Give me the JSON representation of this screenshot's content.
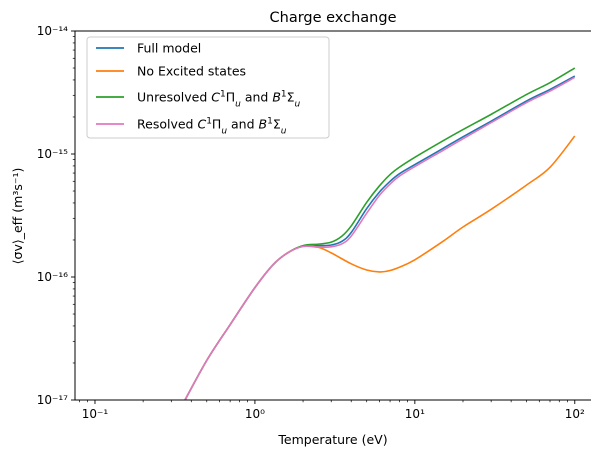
{
  "chart_data": {
    "type": "line",
    "title": "Charge exchange",
    "xlabel": "Temperature (eV)",
    "ylabel": "⟨σv⟩_eff (m³s⁻¹)",
    "xscale": "log",
    "yscale": "log",
    "xlim": [
      0.075,
      130
    ],
    "ylim": [
      1e-17,
      1e-14
    ],
    "x_tick_labels": [
      "10⁻¹",
      "10⁰",
      "10¹",
      "10²"
    ],
    "y_tick_labels": [
      "10⁻¹⁷",
      "10⁻¹⁶",
      "10⁻¹⁵",
      "10⁻¹⁴"
    ],
    "grid": false,
    "legend_position": "upper-left",
    "series": [
      {
        "name": "Full model",
        "color": "#1f77b4",
        "x": [
          0.35,
          0.5,
          0.7,
          1.0,
          1.3,
          1.6,
          2.0,
          2.5,
          3.0,
          3.5,
          4.0,
          5.0,
          6.0,
          7.0,
          8.0,
          10,
          15,
          20,
          30,
          50,
          70,
          100
        ],
        "y": [
          9e-18,
          2.1e-17,
          4.1e-17,
          8.2e-17,
          1.26e-16,
          1.57e-16,
          1.79e-16,
          1.8e-16,
          1.82e-16,
          1.95e-16,
          2.3e-16,
          3.6e-16,
          4.9e-16,
          6e-16,
          6.9e-16,
          8.2e-16,
          1.11e-15,
          1.38e-15,
          1.85e-15,
          2.7e-15,
          3.35e-15,
          4.3e-15
        ]
      },
      {
        "name": "No Excited states",
        "color": "#ff7f0e",
        "x": [
          0.35,
          0.5,
          0.7,
          1.0,
          1.3,
          1.6,
          2.0,
          2.5,
          3.0,
          4.0,
          5.0,
          6.0,
          7.0,
          8.0,
          10,
          15,
          20,
          30,
          50,
          70,
          100
        ],
        "y": [
          9e-18,
          2.1e-17,
          4.1e-17,
          8.2e-17,
          1.26e-16,
          1.57e-16,
          1.79e-16,
          1.74e-16,
          1.57e-16,
          1.28e-16,
          1.14e-16,
          1.1e-16,
          1.13e-16,
          1.2e-16,
          1.38e-16,
          1.95e-16,
          2.55e-16,
          3.55e-16,
          5.6e-16,
          7.8e-16,
          1.4e-15
        ]
      },
      {
        "name": "Unresolved C¹Πᵤ and B¹Σᵤ",
        "color": "#2ca02c",
        "x": [
          0.35,
          0.5,
          0.7,
          1.0,
          1.3,
          1.6,
          2.0,
          2.5,
          3.0,
          3.5,
          4.0,
          5.0,
          6.0,
          7.0,
          8.0,
          10,
          15,
          20,
          30,
          50,
          70,
          100
        ],
        "y": [
          9e-18,
          2.1e-17,
          4.1e-17,
          8.2e-17,
          1.26e-16,
          1.57e-16,
          1.8e-16,
          1.85e-16,
          1.92e-16,
          2.15e-16,
          2.6e-16,
          4.05e-16,
          5.5e-16,
          6.8e-16,
          7.8e-16,
          9.4e-16,
          1.28e-15,
          1.58e-15,
          2.1e-15,
          3.05e-15,
          3.8e-15,
          5e-15
        ]
      },
      {
        "name": "Resolved C¹Πᵤ and B¹Σᵤ",
        "color": "#e377c2",
        "x": [
          0.35,
          0.5,
          0.7,
          1.0,
          1.3,
          1.6,
          2.0,
          2.5,
          3.0,
          3.5,
          4.0,
          5.0,
          6.0,
          7.0,
          8.0,
          10,
          15,
          20,
          30,
          50,
          70,
          100
        ],
        "y": [
          9e-18,
          2.1e-17,
          4.1e-17,
          8.2e-17,
          1.26e-16,
          1.57e-16,
          1.77e-16,
          1.75e-16,
          1.76e-16,
          1.86e-16,
          2.15e-16,
          3.3e-16,
          4.6e-16,
          5.7e-16,
          6.6e-16,
          7.9e-16,
          1.07e-15,
          1.33e-15,
          1.8e-15,
          2.62e-15,
          3.25e-15,
          4.2e-15
        ]
      }
    ]
  }
}
